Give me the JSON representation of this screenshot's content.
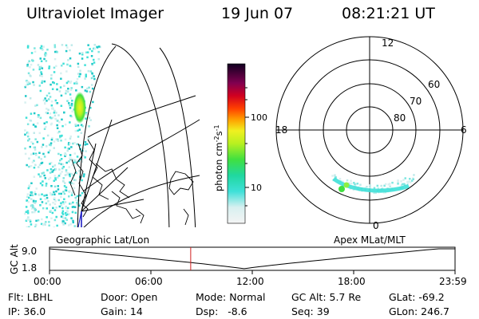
{
  "header": {
    "instrument": "Ultraviolet Imager",
    "date": "19 Jun 07",
    "time": "08:21:21 UT"
  },
  "colorbar": {
    "unit_label": "photon cm",
    "unit_exp1": "-2",
    "unit_s": "s",
    "unit_exp2": "-1",
    "ticks": [
      "100",
      "10"
    ]
  },
  "geo_panel": {
    "label": "Geographic Lat/Lon"
  },
  "polar_panel": {
    "label": "Apex MLat/MLT",
    "mlt_labels": {
      "top": "12",
      "left": "18",
      "right": "6",
      "bottom": "0"
    },
    "lat_labels": [
      "60",
      "70",
      "80"
    ]
  },
  "timeline": {
    "axis_label": "GC Alt",
    "y_ticks": [
      "9.0",
      "1.8"
    ],
    "x_ticks": [
      "00:00",
      "06:00",
      "12:00",
      "18:00",
      "23:59"
    ],
    "current_time_hours": 8.356
  },
  "status": {
    "filter": "Flt: LBHL",
    "ip": "IP: 36.0",
    "door": "Door: Open",
    "gain": "Gain: 14",
    "mode": "Mode: Normal",
    "dsp": "Dsp:   -8.6",
    "gc_alt": "GC Alt: 5.7 Re",
    "seq": "Seq: 39",
    "glat": "GLat: -69.2",
    "glon": "GLon: 246.7"
  }
}
